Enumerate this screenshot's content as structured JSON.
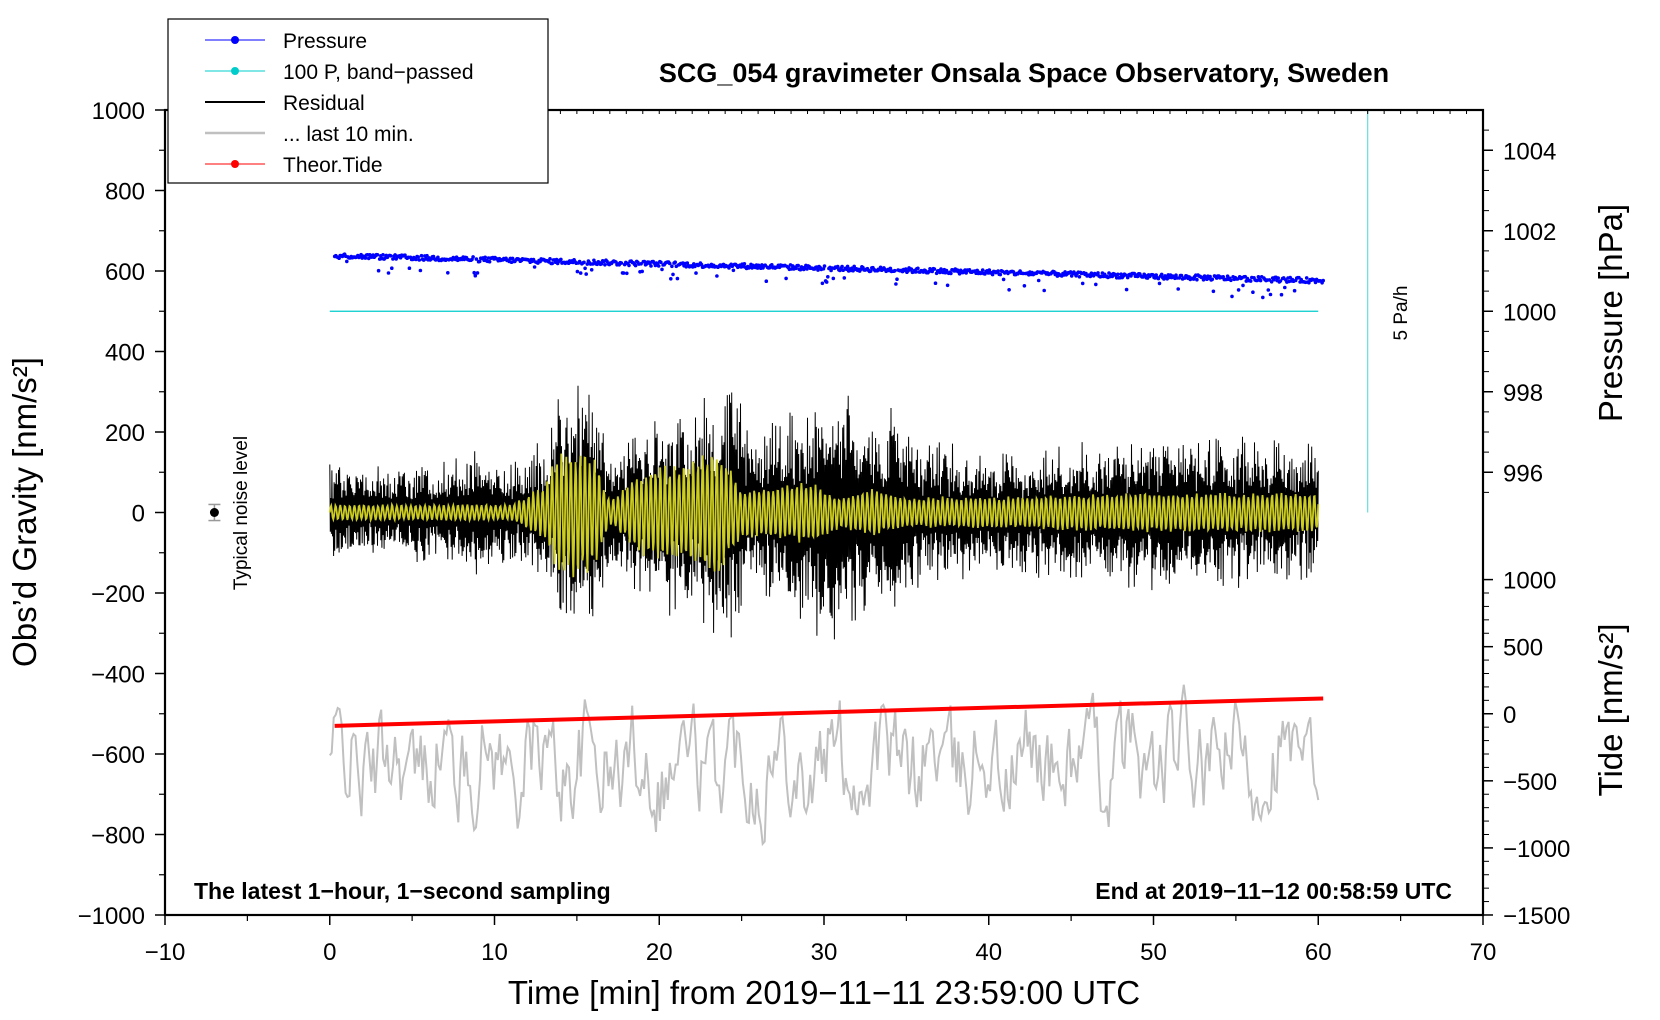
{
  "chart_data": {
    "type": "line",
    "title": "SCG_054 gravimeter Onsala Space Observatory, Sweden",
    "xlabel": "Time [min] from 2019−11−11 23:59:00 UTC",
    "ylabel_left": "Obs’d Gravity [nm/s²]",
    "ylabel_right_top": "Pressure [hPa]",
    "ylabel_right_bottom": "Tide [nm/s²]",
    "xlim": [
      -10,
      70
    ],
    "ylim": [
      -1000,
      1000
    ],
    "x_ticks": [
      -10,
      0,
      10,
      20,
      30,
      40,
      50,
      60,
      70
    ],
    "x_tick_labels": [
      "−10",
      "0",
      "10",
      "20",
      "30",
      "40",
      "50",
      "60",
      "70"
    ],
    "y_ticks": [
      1000,
      800,
      600,
      400,
      200,
      0,
      -200,
      -400,
      -600,
      -800,
      -1000
    ],
    "y_tick_labels": [
      "1000",
      "800",
      "600",
      "400",
      "200",
      "0",
      "−200",
      "−400",
      "−600",
      "−800",
      "−1000"
    ],
    "pressure_axis": {
      "ticks": [
        1004,
        1002,
        1000,
        998,
        996
      ],
      "tick_labels": [
        "1004",
        "1002",
        "1000",
        "998",
        "996"
      ],
      "ref_value": 1000,
      "ref_gravity": 500,
      "hpa_per_unit": 0.01
    },
    "tide_axis": {
      "ticks": [
        1000,
        500,
        0,
        -500,
        -1000,
        -1500
      ],
      "tick_labels": [
        "1000",
        "500",
        "0",
        "−500",
        "−1000",
        "−1500"
      ],
      "ref_value": 0,
      "ref_gravity": -500,
      "scale": 0.3333
    },
    "legend": [
      {
        "label": "Pressure",
        "color": "#0000ff",
        "marker": true
      },
      {
        "label": "100 P, band−passed",
        "color": "#00cccc",
        "marker": true
      },
      {
        "label": "Residual",
        "color": "#000000",
        "marker": false
      },
      {
        "label": "... last 10 min.",
        "color": "#c0c0c0",
        "marker": false
      },
      {
        "label": "Theor.Tide",
        "color": "#ff0000",
        "marker": true
      }
    ],
    "series": [
      {
        "name": "Pressure",
        "color": "#0000ff",
        "style": "points",
        "x_range": [
          0.3,
          60.3
        ],
        "hpa_start": 1001.38,
        "hpa_end": 1000.76
      },
      {
        "name": "100 P, band−passed",
        "color": "#00cccc",
        "style": "line",
        "x_range": [
          0,
          60
        ],
        "value": 500
      },
      {
        "name": "Residual",
        "color": "#000000",
        "style": "line",
        "x_range": [
          0,
          60
        ],
        "envelope_x": [
          0,
          4,
          7,
          9,
          11,
          13,
          14,
          16,
          17,
          19,
          22,
          24,
          26,
          29,
          30,
          33,
          34,
          36,
          40,
          44,
          50,
          55,
          60
        ],
        "envelope_y": [
          130,
          120,
          140,
          180,
          130,
          200,
          330,
          350,
          170,
          250,
          300,
          350,
          220,
          300,
          380,
          250,
          330,
          200,
          160,
          180,
          200,
          200,
          180
        ]
      },
      {
        "name": "Band−passed residual",
        "color": "#cccc22",
        "style": "line",
        "x_range": [
          0,
          60
        ],
        "envelope_x": [
          0,
          11,
          13,
          14,
          16,
          17,
          19,
          22,
          23.5,
          25,
          29,
          31,
          33,
          35,
          40,
          50,
          60
        ],
        "envelope_y": [
          20,
          20,
          70,
          170,
          150,
          30,
          110,
          130,
          170,
          60,
          80,
          40,
          60,
          40,
          40,
          50,
          50
        ]
      },
      {
        "name": "... last 10 min.",
        "color": "#c0c0c0",
        "style": "line",
        "x_range": [
          0,
          60
        ],
        "center": -620,
        "amplitude": 160
      },
      {
        "name": "Theor.Tide",
        "color": "#ff0000",
        "style": "line",
        "x": [
          0.3,
          60.3
        ],
        "y": [
          -530,
          -462
        ]
      }
    ],
    "noise_marker": {
      "x": -7,
      "y": 0,
      "error": 20,
      "label": "Typical noise level"
    },
    "scale_bar": {
      "x": 63,
      "y_from": 0,
      "y_to": 1000,
      "label": "5 Pa/h"
    },
    "annotations": {
      "bottom_left": "The latest 1−hour, 1−second sampling",
      "bottom_right": "End at 2019−11−12 00:58:59 UTC"
    }
  }
}
